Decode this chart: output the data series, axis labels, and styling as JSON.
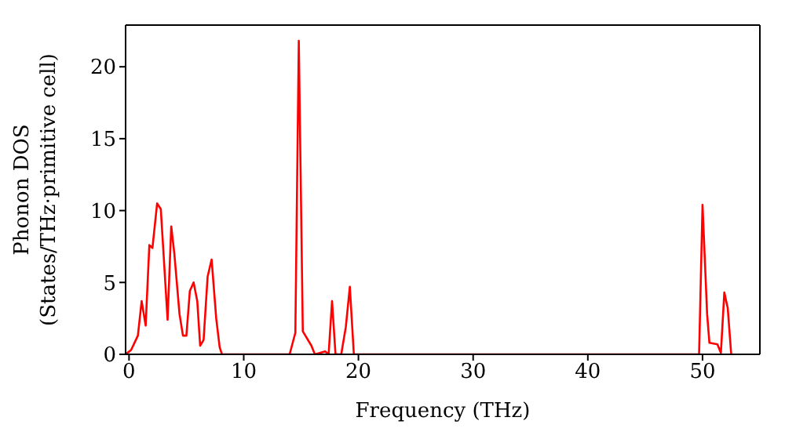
{
  "chart_data": {
    "type": "line",
    "xlabel": "Frequency (THz)",
    "ylabel": "Phonon DOS\n(States/THz·primitive cell)",
    "xlim": [
      -0.3,
      55
    ],
    "ylim": [
      0,
      22.9
    ],
    "xticks": [
      0,
      10,
      20,
      30,
      40,
      50
    ],
    "yticks": [
      0,
      5,
      10,
      15,
      20
    ],
    "marker": "none",
    "line_style": "solid",
    "series": [
      {
        "color": "#ff0000",
        "x": [
          -0.3,
          0.18,
          0.77,
          1.1,
          1.45,
          1.77,
          2.04,
          2.45,
          2.77,
          3.36,
          3.68,
          3.95,
          4.4,
          4.7,
          5.0,
          5.3,
          5.63,
          5.95,
          6.2,
          6.5,
          6.85,
          7.2,
          7.6,
          7.9,
          8.1,
          14.0,
          14.5,
          14.8,
          15.15,
          15.9,
          16.2,
          17.1,
          17.4,
          17.7,
          18.0,
          18.5,
          18.9,
          19.25,
          19.6,
          49.7,
          50.0,
          50.4,
          50.6,
          51.3,
          51.6,
          51.9,
          52.2,
          52.5
        ],
        "values": [
          0,
          0.3,
          1.3,
          3.7,
          2.0,
          7.6,
          7.4,
          10.5,
          10.1,
          2.4,
          8.9,
          7.0,
          2.8,
          1.3,
          1.3,
          4.4,
          5.0,
          3.7,
          0.6,
          1.0,
          5.4,
          6.6,
          2.5,
          0.5,
          0,
          0,
          1.5,
          21.8,
          1.6,
          0.6,
          0,
          0.2,
          0,
          3.7,
          0,
          0,
          1.9,
          4.7,
          0,
          0,
          10.4,
          2.8,
          0.8,
          0.7,
          0.1,
          4.3,
          3.2,
          0
        ]
      }
    ]
  }
}
